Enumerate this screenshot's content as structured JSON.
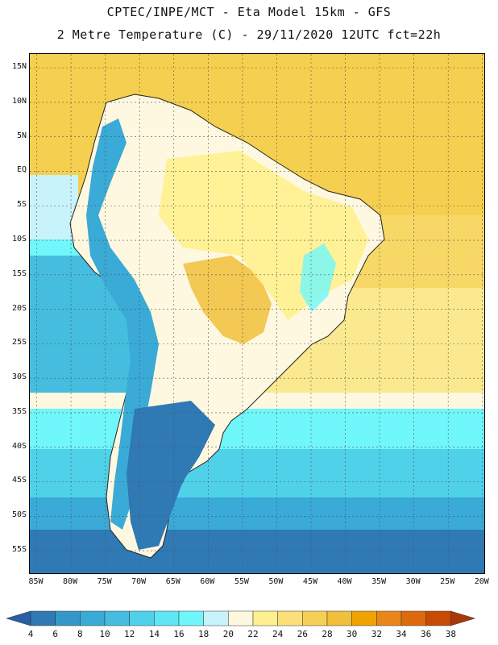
{
  "header": {
    "line1": "CPTEC/INPE/MCT -  Eta Model 15km - GFS",
    "line2": "2 Metre Temperature (C) - 29/11/2020 12UTC fct=22h"
  },
  "map": {
    "lat_labels": [
      "15N",
      "10N",
      "5N",
      "EQ",
      "5S",
      "10S",
      "15S",
      "20S",
      "25S",
      "30S",
      "35S",
      "40S",
      "45S",
      "50S",
      "55S"
    ],
    "lon_labels": [
      "85W",
      "80W",
      "75W",
      "70W",
      "65W",
      "60W",
      "55W",
      "50W",
      "45W",
      "40W",
      "35W",
      "30W",
      "25W",
      "20W"
    ],
    "lat_values": [
      15,
      10,
      5,
      0,
      -5,
      -10,
      -15,
      -20,
      -25,
      -30,
      -35,
      -40,
      -45,
      -50,
      -55
    ],
    "lon_values": [
      -85,
      -80,
      -75,
      -70,
      -65,
      -60,
      -55,
      -50,
      -45,
      -40,
      -35,
      -30,
      -25,
      -20
    ],
    "extent": {
      "lon_min": -86,
      "lon_max": -19.5,
      "lat_min": -58.5,
      "lat_max": 17
    }
  },
  "legend": {
    "ticks": [
      "4",
      "6",
      "8",
      "10",
      "12",
      "14",
      "16",
      "18",
      "20",
      "22",
      "24",
      "26",
      "28",
      "30",
      "32",
      "34",
      "36",
      "38"
    ],
    "colors": [
      "#2b5fa3",
      "#2f79b5",
      "#3597c8",
      "#3aaad6",
      "#44bddf",
      "#4fd1ea",
      "#5ee6f5",
      "#6ff7fb",
      "#c8f3fb",
      "#fff8e0",
      "#fef08e",
      "#fbe07a",
      "#f6d056",
      "#f1bf3a",
      "#f0a300",
      "#e9861a",
      "#dd6a0d",
      "#c94a05",
      "#a93808"
    ]
  },
  "colors": {
    "ocean_north": "#f5cf4f",
    "ocean_mid": "#fbe98f",
    "ocean_cool": "#5ee6f5",
    "ocean_cold": "#3597c8",
    "ocean_coldest": "#2b5fa3",
    "land_hot": "#f0b03a",
    "land_warm": "#fef08e",
    "land_mild": "#fff8e0",
    "andes": "#3aaad6",
    "patagonia": "#2f79b5"
  }
}
